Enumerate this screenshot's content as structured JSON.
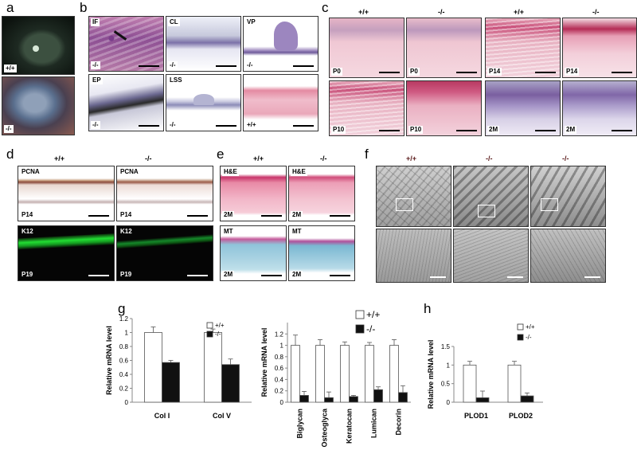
{
  "panels": {
    "a": {
      "label": "a",
      "top_genotype": "+/+",
      "bottom_genotype": "-/-"
    },
    "b": {
      "label": "b",
      "tiles": [
        {
          "tag": "IF",
          "genotype": "-/-"
        },
        {
          "tag": "CL",
          "genotype": "-/-"
        },
        {
          "tag": "VP",
          "genotype": "-/-"
        },
        {
          "tag": "EP",
          "genotype": "-/-"
        },
        {
          "tag": "LSS",
          "genotype": "-/-"
        },
        {
          "tag": "",
          "genotype": "+/+"
        }
      ]
    },
    "c": {
      "label": "c",
      "headers": [
        "+/+",
        "-/-",
        "+/+",
        "-/-"
      ],
      "tiles": [
        "P0",
        "P0",
        "P14",
        "P14",
        "P10",
        "P10",
        "2M",
        "2M"
      ]
    },
    "d": {
      "label": "d",
      "headers": [
        "+/+",
        "-/-"
      ],
      "tiles": [
        {
          "stain": "PCNA",
          "age": "P14"
        },
        {
          "stain": "PCNA",
          "age": "P14"
        },
        {
          "stain": "K12",
          "age": "P19"
        },
        {
          "stain": "K12",
          "age": "P19"
        }
      ]
    },
    "e": {
      "label": "e",
      "headers": [
        "+/+",
        "-/-"
      ],
      "tiles": [
        {
          "stain": "H&E",
          "age": "2M"
        },
        {
          "stain": "H&E",
          "age": "2M"
        },
        {
          "stain": "MT",
          "age": "2M"
        },
        {
          "stain": "MT",
          "age": "2M"
        }
      ]
    },
    "f": {
      "label": "f",
      "headers": [
        "+/+",
        "-/-",
        "-/-"
      ]
    },
    "g": {
      "label": "g"
    },
    "h": {
      "label": "h"
    }
  },
  "colors": {
    "wild_type_bar": "#ffffff",
    "knockout_bar": "#111111",
    "he_stain": "#e6a3b7",
    "mt_stain": "#8fc4da",
    "k12_fluor": "#22dd33"
  },
  "chart_data": [
    {
      "type": "bar",
      "panel": "g-left",
      "categories": [
        "Col I",
        "Col V"
      ],
      "series": [
        {
          "name": "+/+",
          "values": [
            1.0,
            1.0
          ],
          "errors": [
            0.08,
            0.05
          ]
        },
        {
          "name": "-/-",
          "values": [
            0.57,
            0.54
          ],
          "errors": [
            0.03,
            0.08
          ]
        }
      ],
      "ylabel": "Relative mRNA level",
      "yticks": [
        0,
        0.2,
        0.4,
        0.6,
        0.8,
        1,
        1.2
      ],
      "ylim": [
        0,
        1.2
      ],
      "legend": "top-right"
    },
    {
      "type": "bar",
      "panel": "g-right",
      "categories": [
        "Biglycan",
        "Osteoglycan",
        "Keratocan",
        "Lumican",
        "Decorin"
      ],
      "category_labels": [
        "Biglycan",
        "Osteoglyca",
        "Keratocan",
        "Lumican",
        "Decorin"
      ],
      "series": [
        {
          "name": "+/+",
          "values": [
            1.0,
            1.0,
            1.0,
            1.0,
            1.0
          ],
          "errors": [
            0.18,
            0.1,
            0.06,
            0.05,
            0.1
          ]
        },
        {
          "name": "-/-",
          "values": [
            0.12,
            0.08,
            0.1,
            0.22,
            0.17
          ],
          "errors": [
            0.07,
            0.1,
            0.02,
            0.05,
            0.12
          ]
        }
      ],
      "ylabel": "Relative mRNA level",
      "yticks": [
        0,
        0.2,
        0.4,
        0.6,
        0.8,
        1,
        1.2
      ],
      "ylim": [
        0,
        1.4
      ],
      "legend": "top-right"
    },
    {
      "type": "bar",
      "panel": "h",
      "categories": [
        "PLOD1",
        "PLOD2"
      ],
      "series": [
        {
          "name": "+/+",
          "values": [
            1.0,
            1.0
          ],
          "errors": [
            0.1,
            0.1
          ]
        },
        {
          "name": "-/-",
          "values": [
            0.12,
            0.17
          ],
          "errors": [
            0.18,
            0.08
          ]
        }
      ],
      "ylabel": "Relative mRNA level",
      "yticks": [
        0,
        0.5,
        1,
        1.5
      ],
      "ylim": [
        0,
        1.5
      ],
      "legend": "top-right"
    }
  ]
}
